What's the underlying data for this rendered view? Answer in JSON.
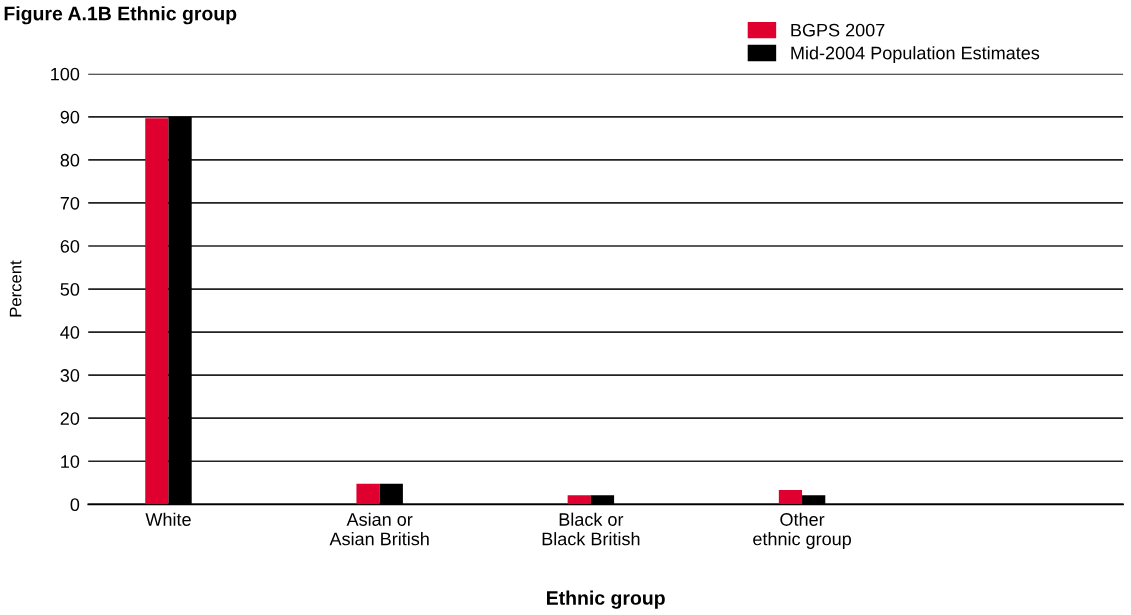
{
  "chart_data": {
    "type": "bar",
    "title": "Figure A.1B Ethnic group",
    "xlabel": "Ethnic group",
    "ylabel": "Percent",
    "categories": [
      "White",
      "Asian or\nAsian British",
      "Black or\nBlack British",
      "Other\nethnic group"
    ],
    "series": [
      {
        "name": "BGPS 2007",
        "color": "#e0002f",
        "values": [
          89.7,
          4.8,
          2.1,
          3.3
        ]
      },
      {
        "name": "Mid-2004 Population Estimates",
        "color": "#000000",
        "values": [
          90.0,
          4.8,
          2.1,
          2.1
        ]
      }
    ],
    "ylim": [
      0,
      100
    ],
    "yticks": [
      0,
      10,
      20,
      30,
      40,
      50,
      60,
      70,
      80,
      90,
      100
    ],
    "grid": "y",
    "legend": "top right"
  }
}
